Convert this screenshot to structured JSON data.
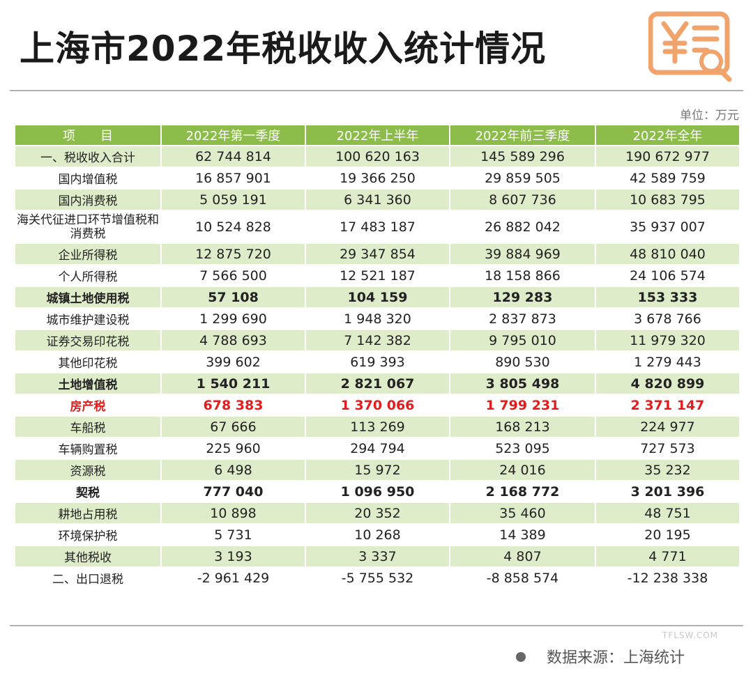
{
  "title": "上海市2022年税收收入统计情况",
  "unit": "单位：万元",
  "logo_icon": "yen-receipt-search-icon",
  "accent_color": "#8cbc4a",
  "highlight_color": "#e21c1c",
  "table": {
    "headers": [
      "项　　目",
      "2022年第一季度",
      "2022年上半年",
      "2022年前三季度",
      "2022年全年"
    ],
    "rows": [
      {
        "label": "一、税收收入合计",
        "values": [
          "62 744 814",
          "100 620 163",
          "145 589 296",
          "190 672 977"
        ]
      },
      {
        "label": "国内增值税",
        "values": [
          "16 857 901",
          "19 366 250",
          "29 859 505",
          "42 589 759"
        ]
      },
      {
        "label": "国内消费税",
        "values": [
          "5 059 191",
          "6 341 360",
          "8 607 736",
          "10 683 795"
        ]
      },
      {
        "label": "海关代征进口环节增值税和消费税",
        "values": [
          "10 524 828",
          "17 483 187",
          "26 882 042",
          "35 937 007"
        ]
      },
      {
        "label": "企业所得税",
        "values": [
          "12 875 720",
          "29 347 854",
          "39 884 969",
          "48 810 040"
        ]
      },
      {
        "label": "个人所得税",
        "values": [
          "7 566 500",
          "12 521 187",
          "18 158 866",
          "24 106 574"
        ]
      },
      {
        "label": "城镇土地使用税",
        "values": [
          "57 108",
          "104 159",
          "129 283",
          "153 333"
        ]
      },
      {
        "label": "城市维护建设税",
        "values": [
          "1 299 690",
          "1 948 320",
          "2 837 873",
          "3 678 766"
        ]
      },
      {
        "label": "证券交易印花税",
        "values": [
          "4 788 693",
          "7 142 382",
          "9 795 010",
          "11 979 320"
        ]
      },
      {
        "label": "其他印花税",
        "values": [
          "399 602",
          "619 393",
          "890 530",
          "1 279 443"
        ]
      },
      {
        "label": "土地增值税",
        "values": [
          "1 540 211",
          "2 821 067",
          "3 805 498",
          "4 820 899"
        ]
      },
      {
        "label": "房产税",
        "values": [
          "678 383",
          "1 370 066",
          "1 799 231",
          "2 371 147"
        ]
      },
      {
        "label": "车船税",
        "values": [
          "67 666",
          "113 269",
          "168 213",
          "224 977"
        ]
      },
      {
        "label": "车辆购置税",
        "values": [
          "225 960",
          "294 794",
          "523 095",
          "727 573"
        ]
      },
      {
        "label": "资源税",
        "values": [
          "6 498",
          "15 972",
          "24 016",
          "35 232"
        ]
      },
      {
        "label": "契税",
        "values": [
          "777 040",
          "1 096 950",
          "2 168 772",
          "3 201 396"
        ]
      },
      {
        "label": "耕地占用税",
        "values": [
          "10 898",
          "20 352",
          "35 460",
          "48 751"
        ]
      },
      {
        "label": "环境保护税",
        "values": [
          "5 731",
          "10 268",
          "14 389",
          "20 195"
        ]
      },
      {
        "label": "其他税收",
        "values": [
          "3 193",
          "3 337",
          "4 807",
          "4 771"
        ]
      },
      {
        "label": "二、出口退税",
        "values": [
          "-2 961 429",
          "-5 755 532",
          "-8 858 574",
          "-12 238 338"
        ]
      }
    ]
  },
  "footer": {
    "source": "数据来源：上海统计",
    "watermark": "TFLSW.COM"
  }
}
